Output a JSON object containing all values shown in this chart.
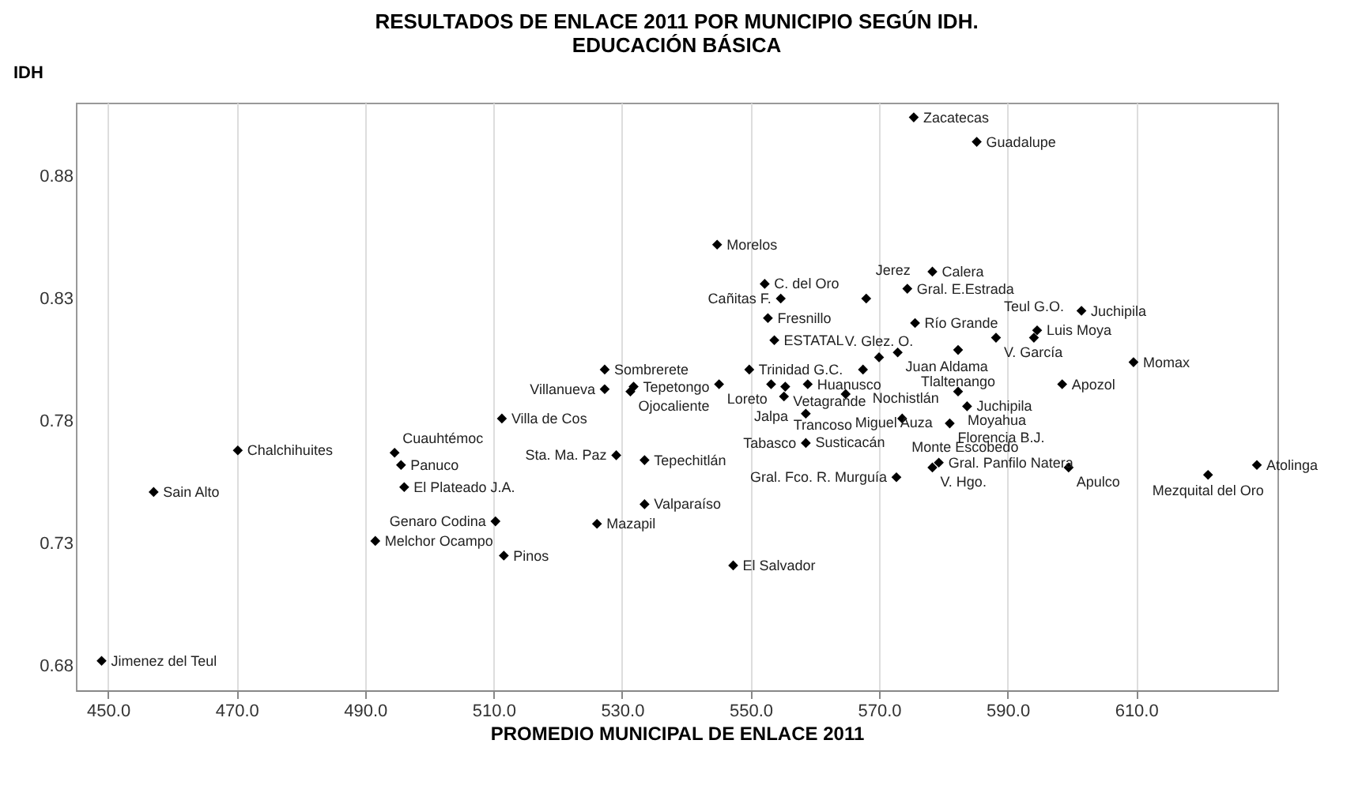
{
  "chart_data": {
    "type": "scatter",
    "title": "RESULTADOS DE ENLACE 2011 POR MUNICIPIO SEGÚN IDH.  EDUCACIÓN BÁSICA",
    "xlabel": "PROMEDIO MUNICIPAL DE ENLACE 2011",
    "ylabel": "IDH",
    "x": [
      575.4,
      585.2,
      544.8,
      552.2,
      554.7,
      552.7,
      553.7,
      568.0,
      527.3,
      549.8,
      531.8,
      545.1,
      527.3,
      531.3,
      511.3,
      553.2,
      555.4,
      558.9,
      555.2,
      558.6,
      564.8,
      572.9,
      570.0,
      567.5,
      573.6,
      558.6,
      529.1,
      533.5,
      533.5,
      526.1,
      547.3,
      572.7,
      578.3,
      579.3,
      470.2,
      494.6,
      495.6,
      496.1,
      457.1,
      510.3,
      491.6,
      511.6,
      449.0,
      578.3,
      574.4,
      601.5,
      575.6,
      588.2,
      594.6,
      594.1,
      582.3,
      609.6,
      598.5,
      582.3,
      583.7,
      581.0,
      599.5,
      621.2,
      628.8
    ],
    "values": [
      0.904,
      0.894,
      0.852,
      0.836,
      0.83,
      0.822,
      0.813,
      0.83,
      0.801,
      0.801,
      0.794,
      0.795,
      0.793,
      0.792,
      0.781,
      0.795,
      0.794,
      0.795,
      0.79,
      0.783,
      0.791,
      0.808,
      0.806,
      0.801,
      0.781,
      0.771,
      0.766,
      0.764,
      0.746,
      0.738,
      0.721,
      0.757,
      0.761,
      0.763,
      0.768,
      0.767,
      0.762,
      0.753,
      0.751,
      0.739,
      0.731,
      0.725,
      0.682,
      0.841,
      0.834,
      0.825,
      0.82,
      0.814,
      0.817,
      0.814,
      0.809,
      0.804,
      0.795,
      0.792,
      0.786,
      0.779,
      0.761,
      0.758,
      0.762
    ],
    "color": "#000000",
    "marker": "diamond",
    "xlim": [
      445,
      632
    ],
    "ylim": [
      0.67,
      0.91
    ],
    "xticks": [
      {
        "value": 450,
        "label": "450.0"
      },
      {
        "value": 470,
        "label": "470.0"
      },
      {
        "value": 490,
        "label": "490.0"
      },
      {
        "value": 510,
        "label": "510.0"
      },
      {
        "value": 530,
        "label": "530.0"
      },
      {
        "value": 550,
        "label": "550.0"
      },
      {
        "value": 570,
        "label": "570.0"
      },
      {
        "value": 590,
        "label": "590.0"
      },
      {
        "value": 610,
        "label": "610.0"
      }
    ],
    "yticks": [
      0.68,
      0.73,
      0.78,
      0.83,
      0.88
    ],
    "grid": "x",
    "annotations": [
      {
        "text": "Zacatecas",
        "x": 575.4,
        "y": 0.904
      },
      {
        "text": "Guadalupe",
        "x": 585.2,
        "y": 0.894
      },
      {
        "text": "Morelos",
        "x": 544.8,
        "y": 0.852
      },
      {
        "text": "C. del Oro",
        "x": 552.2,
        "y": 0.836
      },
      {
        "text": "Cañitas F.",
        "x": 554.7,
        "y": 0.83
      },
      {
        "text": "Fresnillo",
        "x": 552.7,
        "y": 0.822
      },
      {
        "text": "ESTATAL",
        "x": 553.7,
        "y": 0.813
      },
      {
        "text": "Jerez",
        "x": 568.0,
        "y": 0.83
      },
      {
        "text": "Sombrerete",
        "x": 527.3,
        "y": 0.801
      },
      {
        "text": "Trinidad G.C.",
        "x": 549.8,
        "y": 0.801
      },
      {
        "text": "Tepetongo",
        "x": 531.8,
        "y": 0.794
      },
      {
        "text": "Loreto",
        "x": 545.1,
        "y": 0.795
      },
      {
        "text": "Villanueva",
        "x": 527.3,
        "y": 0.793
      },
      {
        "text": "Ojocaliente",
        "x": 531.3,
        "y": 0.792
      },
      {
        "text": "Villa de Cos",
        "x": 511.3,
        "y": 0.781
      },
      {
        "text": "Jalpa",
        "x": 553.2,
        "y": 0.795
      },
      {
        "text": "Vetagrande",
        "x": 555.4,
        "y": 0.794
      },
      {
        "text": "Huanusco",
        "x": 558.9,
        "y": 0.795
      },
      {
        "text": "Trancoso",
        "x": 555.2,
        "y": 0.79
      },
      {
        "text": "Susticacán",
        "x": 558.6,
        "y": 0.783
      },
      {
        "text": "Miguel Auza",
        "x": 564.8,
        "y": 0.791
      },
      {
        "text": "Juan Aldama",
        "x": 572.9,
        "y": 0.808
      },
      {
        "text": "V. Glez. O.",
        "x": 570.0,
        "y": 0.806
      },
      {
        "text": "Nochistlán",
        "x": 567.5,
        "y": 0.801
      },
      {
        "text": "Monte Escobedo",
        "x": 573.6,
        "y": 0.781
      },
      {
        "text": "Tabasco",
        "x": 558.6,
        "y": 0.771
      },
      {
        "text": "Sta. Ma. Paz",
        "x": 529.1,
        "y": 0.766
      },
      {
        "text": "Tepechitlán",
        "x": 533.5,
        "y": 0.764
      },
      {
        "text": "Valparaíso",
        "x": 533.5,
        "y": 0.746
      },
      {
        "text": "Mazapil",
        "x": 526.1,
        "y": 0.738
      },
      {
        "text": "El Salvador",
        "x": 547.3,
        "y": 0.721
      },
      {
        "text": "Gral. Fco. R. Murguía",
        "x": 572.7,
        "y": 0.757
      },
      {
        "text": "V. Hgo.",
        "x": 578.3,
        "y": 0.761
      },
      {
        "text": "Gral. Panfilo Natera",
        "x": 579.3,
        "y": 0.763
      },
      {
        "text": "Chalchihuites",
        "x": 470.2,
        "y": 0.768
      },
      {
        "text": "Cuauhtémoc",
        "x": 494.6,
        "y": 0.767
      },
      {
        "text": "Panuco",
        "x": 495.6,
        "y": 0.762
      },
      {
        "text": "El Plateado J.A.",
        "x": 496.1,
        "y": 0.753
      },
      {
        "text": "Sain Alto",
        "x": 457.1,
        "y": 0.751
      },
      {
        "text": "Genaro Codina",
        "x": 510.3,
        "y": 0.739
      },
      {
        "text": "Melchor Ocampo",
        "x": 491.6,
        "y": 0.731
      },
      {
        "text": "Pinos",
        "x": 511.6,
        "y": 0.725
      },
      {
        "text": "Jimenez del Teul",
        "x": 449.0,
        "y": 0.682
      },
      {
        "text": "Calera",
        "x": 578.3,
        "y": 0.841
      },
      {
        "text": "Gral. E.Estrada",
        "x": 574.4,
        "y": 0.834
      },
      {
        "text": "Juchipila",
        "x": 601.5,
        "y": 0.825
      },
      {
        "text": "Río Grande",
        "x": 575.6,
        "y": 0.82
      },
      {
        "text": "V. García",
        "x": 588.2,
        "y": 0.814
      },
      {
        "text": "Luis Moya",
        "x": 594.6,
        "y": 0.817
      },
      {
        "text": "Teul G.O.",
        "x": 594.1,
        "y": 0.814
      },
      {
        "text": "Tlaltenango",
        "x": 582.3,
        "y": 0.809
      },
      {
        "text": "Momax",
        "x": 609.6,
        "y": 0.804
      },
      {
        "text": "Apozol",
        "x": 598.5,
        "y": 0.795
      },
      {
        "text": "Moyahua",
        "x": 582.3,
        "y": 0.792
      },
      {
        "text": "Juchipila",
        "x": 583.7,
        "y": 0.786
      },
      {
        "text": "Florencia B.J.",
        "x": 581.0,
        "y": 0.779
      },
      {
        "text": "Apulco",
        "x": 599.5,
        "y": 0.761
      },
      {
        "text": "Mezquital del Oro",
        "x": 621.2,
        "y": 0.758
      },
      {
        "text": "Atolinga",
        "x": 628.8,
        "y": 0.762
      }
    ]
  }
}
